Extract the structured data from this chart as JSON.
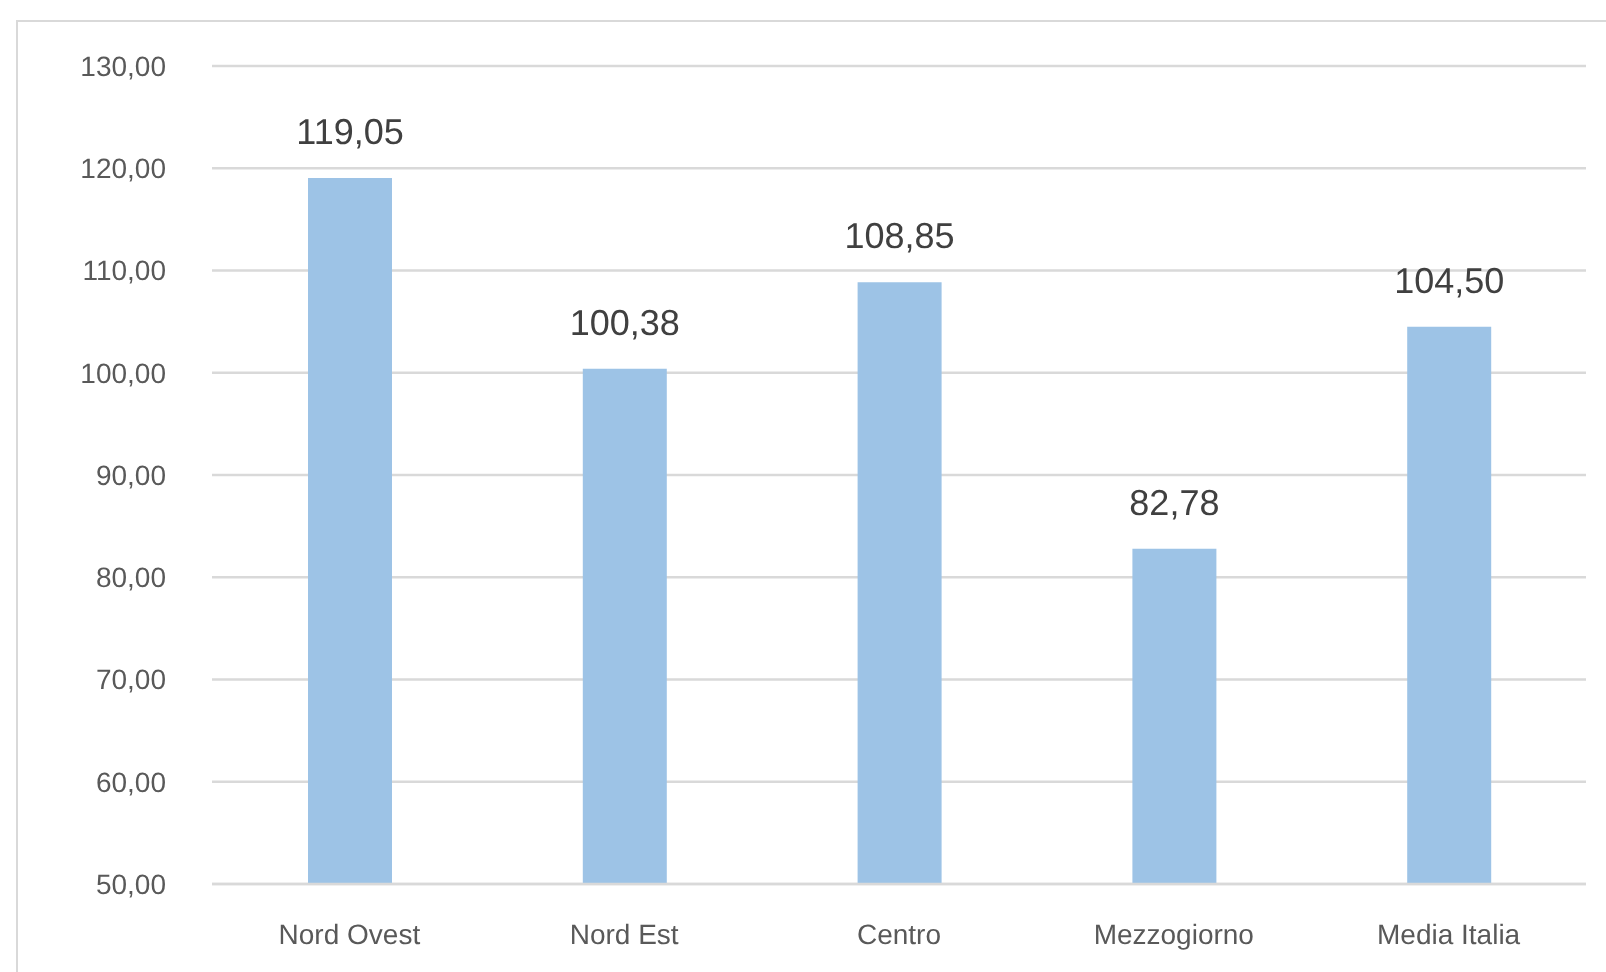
{
  "chart_data": {
    "type": "bar",
    "categories": [
      "Nord Ovest",
      "Nord Est",
      "Centro",
      "Mezzogiorno",
      "Media Italia"
    ],
    "values": [
      119.05,
      100.38,
      108.85,
      82.78,
      104.5
    ],
    "color": "#9dc3e6",
    "value_labels": [
      "119,05",
      "100,38",
      "108,85",
      "82,78",
      "104,50"
    ],
    "ylim": [
      50,
      130
    ],
    "yticks": [
      {
        "value": 50,
        "label": "50,00"
      },
      {
        "value": 60,
        "label": "60,00"
      },
      {
        "value": 70,
        "label": "70,00"
      },
      {
        "value": 80,
        "label": "80,00"
      },
      {
        "value": 90,
        "label": "90,00"
      },
      {
        "value": 100,
        "label": "100,00"
      },
      {
        "value": 110,
        "label": "110,00"
      },
      {
        "value": 120,
        "label": "120,00"
      },
      {
        "value": 130,
        "label": "130,00"
      }
    ],
    "grid": "y"
  }
}
